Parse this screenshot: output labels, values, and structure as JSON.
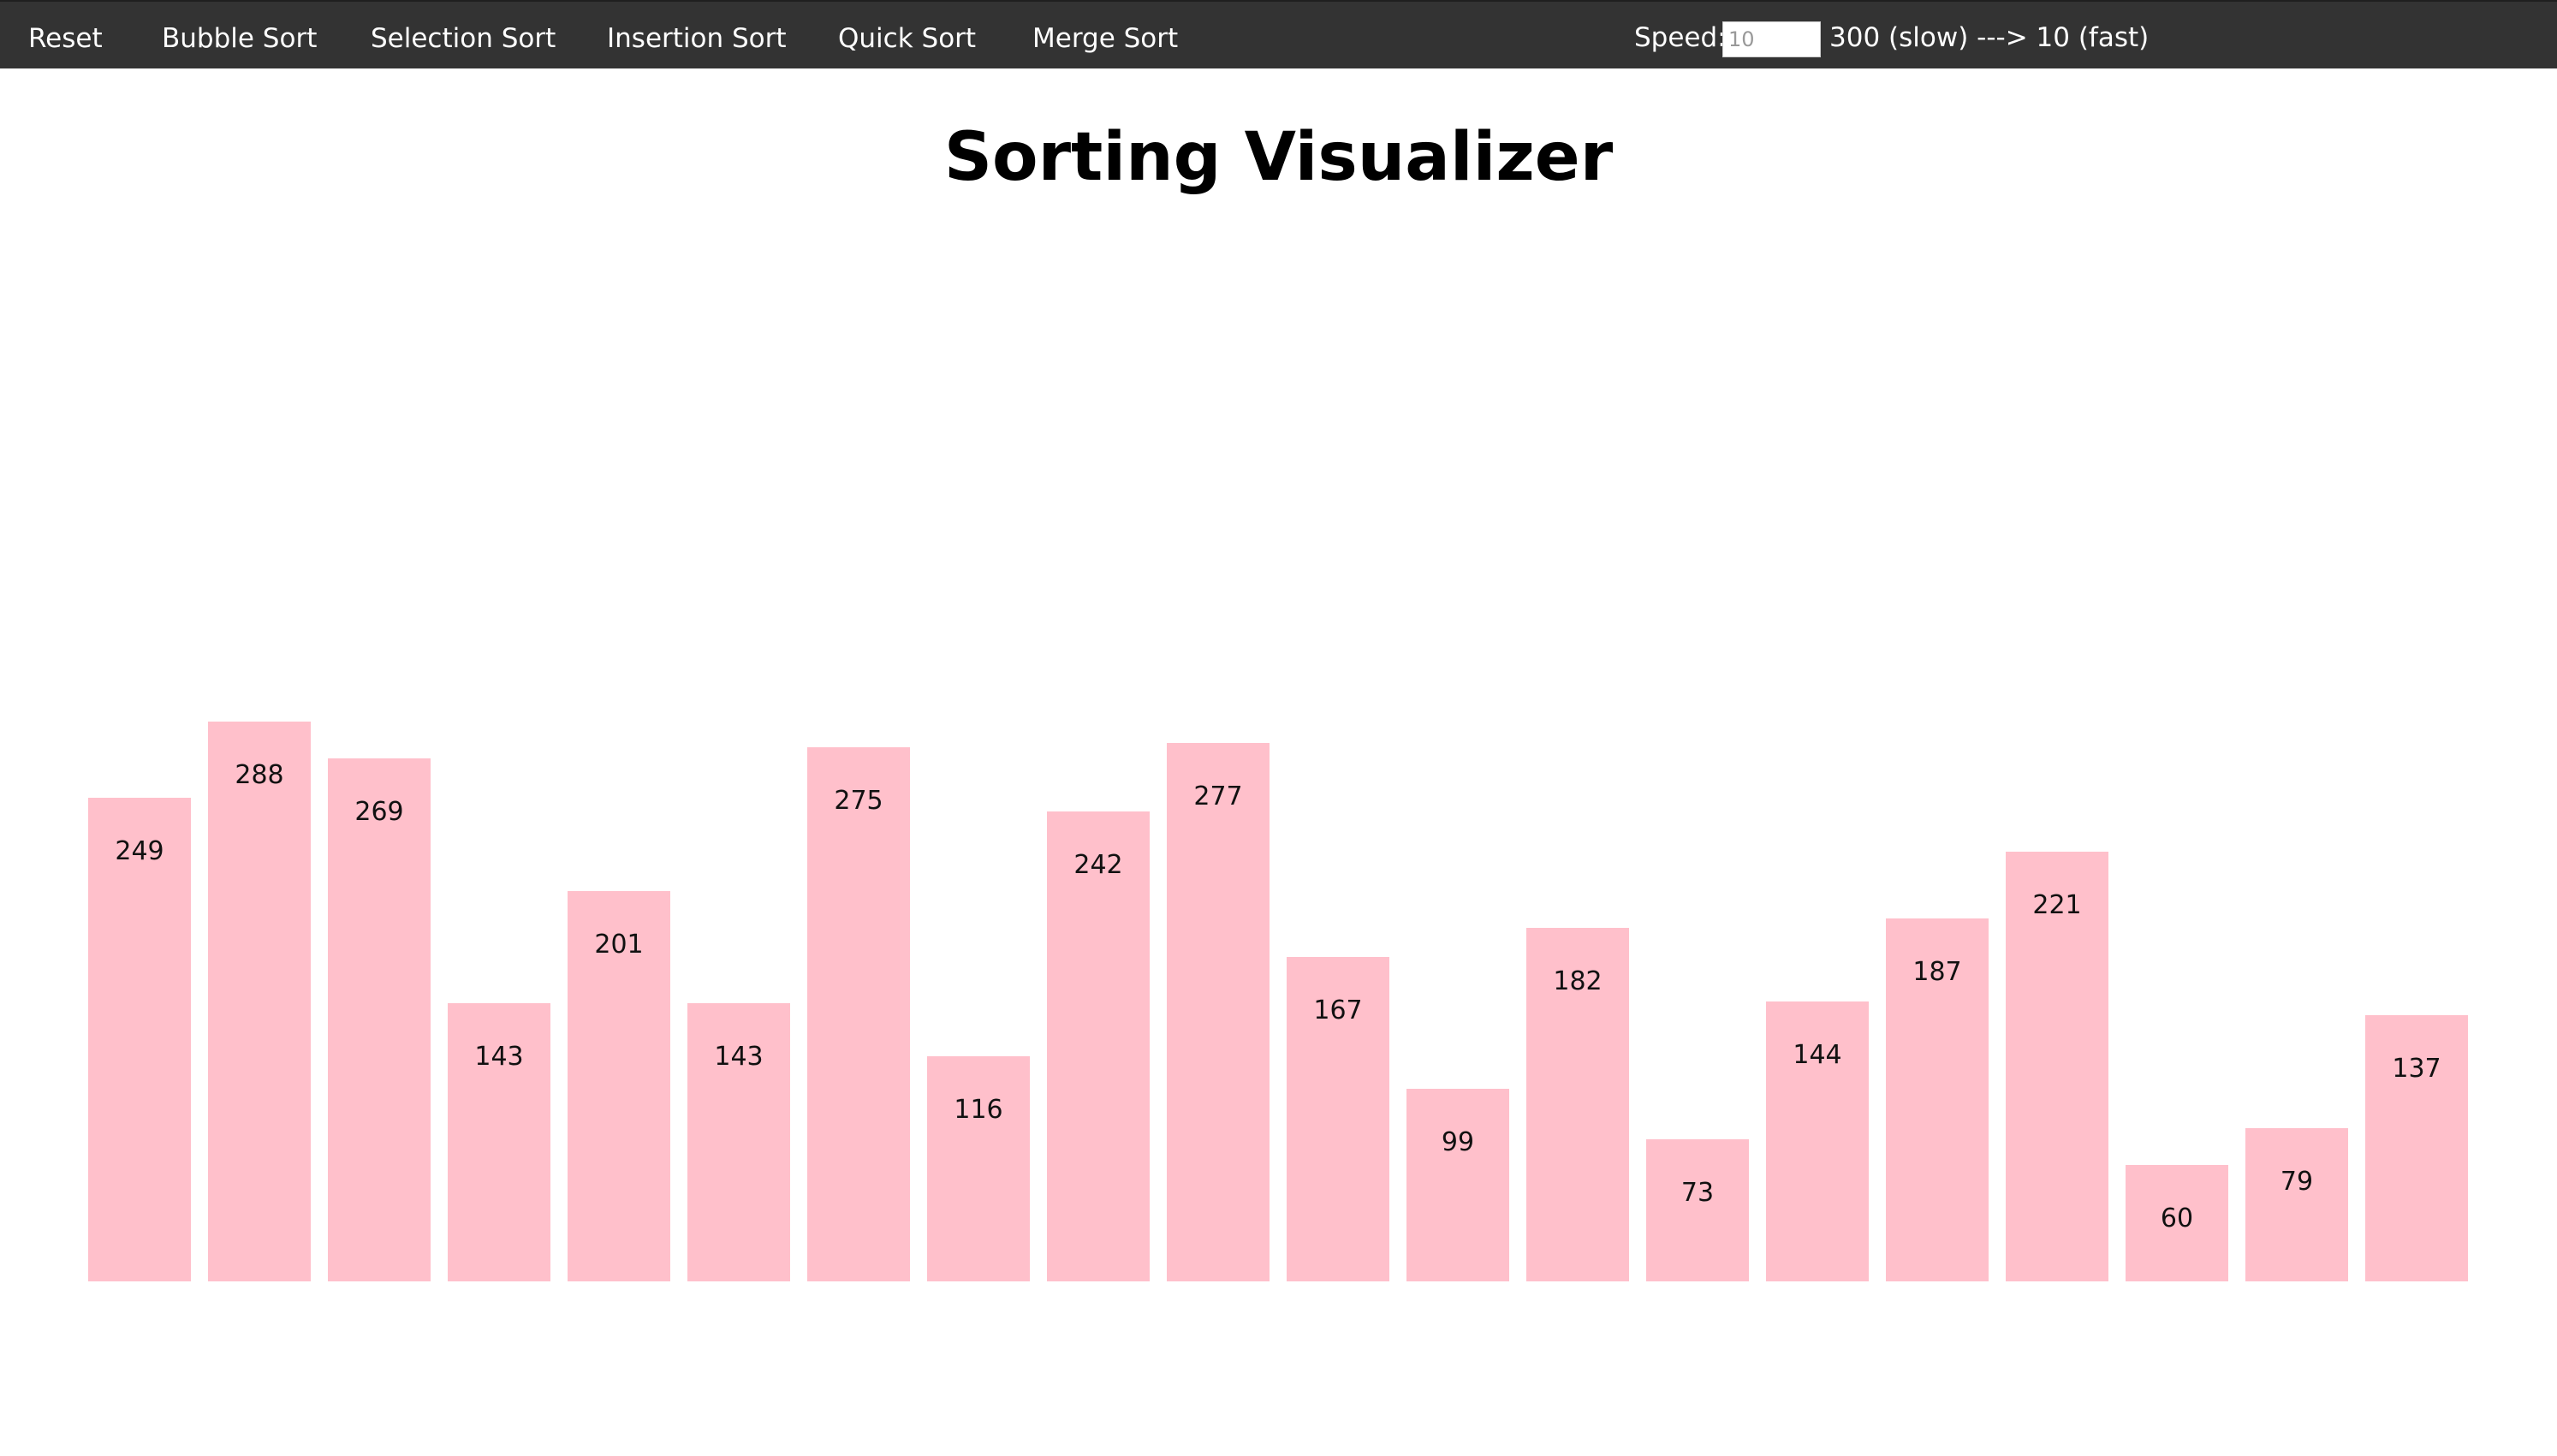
{
  "navbar": {
    "items": [
      {
        "label": "Reset"
      },
      {
        "label": "Bubble Sort"
      },
      {
        "label": "Selection Sort"
      },
      {
        "label": "Insertion Sort"
      },
      {
        "label": "Quick Sort"
      },
      {
        "label": "Merge Sort"
      }
    ],
    "speed_label": "Speed:",
    "speed_placeholder": "10",
    "speed_hint": "300 (slow) ---> 10 (fast)"
  },
  "page_title": "Sorting Visualizer",
  "colors": {
    "navbar_bg": "#333333",
    "bar": "#ffc0cb"
  },
  "chart_data": {
    "type": "bar",
    "title": "",
    "xlabel": "",
    "ylabel": "",
    "ylim": [
      0,
      300
    ],
    "values": [
      249,
      288,
      269,
      143,
      201,
      143,
      275,
      116,
      242,
      277,
      167,
      99,
      182,
      73,
      144,
      187,
      221,
      60,
      79,
      137
    ]
  }
}
